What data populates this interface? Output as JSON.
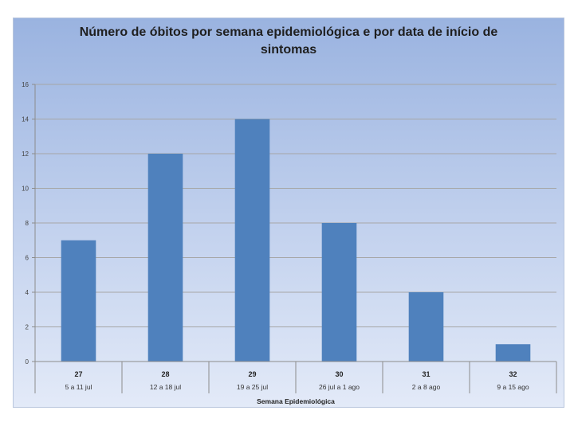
{
  "chart_data": {
    "type": "bar",
    "title": "Número de óbitos por semana epidemiológica e por data de início de sintomas",
    "xlabel": "Semana Epidemiológica",
    "ylabel": "",
    "categories": [
      "27",
      "28",
      "29",
      "30",
      "31",
      "32"
    ],
    "sublabels": [
      "5 a 11 jul",
      "12 a 18 jul",
      "19 a 25 jul",
      "26 jul a 1 ago",
      "2 a 8 ago",
      "9 a 15 ago"
    ],
    "values": [
      7,
      12,
      14,
      8,
      4,
      1
    ],
    "ylim": [
      0,
      16
    ],
    "yticks": [
      0,
      2,
      4,
      6,
      8,
      10,
      12,
      14,
      16
    ],
    "grid": true,
    "legend": "none",
    "colors": {
      "bar": "#4f81bd",
      "grid": "#a6a6a6",
      "axis": "#8c8c8c"
    }
  }
}
